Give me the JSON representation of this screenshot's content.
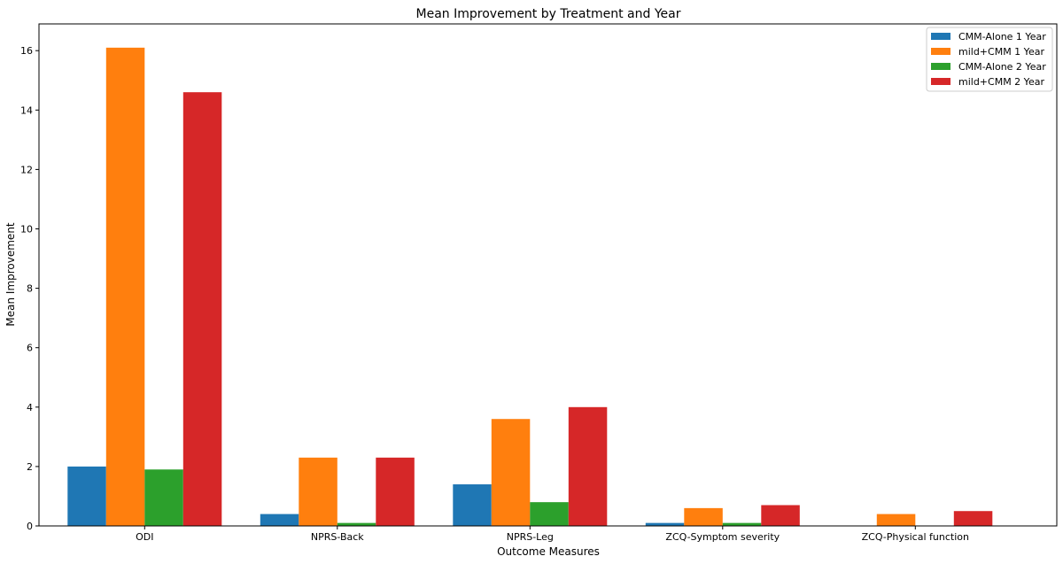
{
  "chart_data": {
    "type": "bar",
    "title": "Mean Improvement by Treatment and Year",
    "xlabel": "Outcome Measures",
    "ylabel": "Mean Improvement",
    "categories": [
      "ODI",
      "NPRS-Back",
      "NPRS-Leg",
      "ZCQ-Symptom severity",
      "ZCQ-Physical function"
    ],
    "series": [
      {
        "name": "CMM-Alone 1 Year",
        "color": "#1f77b4",
        "values": [
          2.0,
          0.4,
          1.4,
          0.1,
          0.0
        ]
      },
      {
        "name": "mild+CMM 1 Year",
        "color": "#ff7f0e",
        "values": [
          16.1,
          2.3,
          3.6,
          0.6,
          0.4
        ]
      },
      {
        "name": "CMM-Alone 2 Year",
        "color": "#2ca02c",
        "values": [
          1.9,
          0.1,
          0.8,
          0.1,
          0.0
        ]
      },
      {
        "name": "mild+CMM 2 Year",
        "color": "#d62728",
        "values": [
          14.6,
          2.3,
          4.0,
          0.7,
          0.5
        ]
      }
    ],
    "ylim": [
      0,
      16.9
    ],
    "yticks": [
      0,
      2,
      4,
      6,
      8,
      10,
      12,
      14,
      16
    ],
    "grid": false,
    "legend_position": "top-right"
  }
}
